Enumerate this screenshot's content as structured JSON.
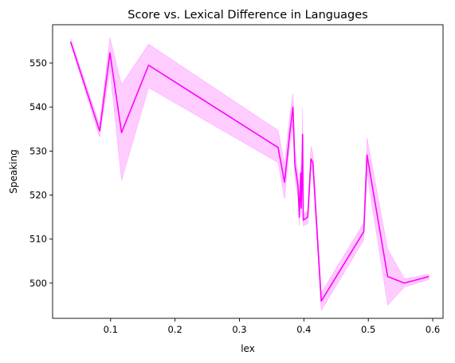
{
  "chart_data": {
    "type": "line",
    "title": "Score vs. Lexical Difference in Languages",
    "xlabel": "lex",
    "ylabel": "Speaking",
    "xlim": [
      0.01,
      0.616
    ],
    "ylim": [
      492.0,
      558.7
    ],
    "x_ticks": [
      0.1,
      0.2,
      0.3,
      0.4,
      0.5,
      0.6
    ],
    "x_tick_labels": [
      "0.1",
      "0.2",
      "0.3",
      "0.4",
      "0.5",
      "0.6"
    ],
    "y_ticks": [
      500,
      510,
      520,
      530,
      540,
      550
    ],
    "y_tick_labels": [
      "500",
      "510",
      "520",
      "530",
      "540",
      "550"
    ],
    "grid": false,
    "legend": "none",
    "series": [
      {
        "line_color": "#ff00ff",
        "band_color": "#ff00ff",
        "band_opacity": 0.2,
        "points": [
          {
            "x": 0.038,
            "y": 554.8,
            "lo": 554.4,
            "hi": 555.6
          },
          {
            "x": 0.083,
            "y": 534.6,
            "lo": 533.1,
            "hi": 536.0
          },
          {
            "x": 0.099,
            "y": 552.3,
            "lo": 548.5,
            "hi": 555.8
          },
          {
            "x": 0.117,
            "y": 534.2,
            "lo": 523.3,
            "hi": 545.1
          },
          {
            "x": 0.159,
            "y": 549.5,
            "lo": 544.4,
            "hi": 554.3
          },
          {
            "x": 0.36,
            "y": 530.8,
            "lo": 527.4,
            "hi": 534.7
          },
          {
            "x": 0.37,
            "y": 522.9,
            "lo": 519.1,
            "hi": 527.0
          },
          {
            "x": 0.378,
            "y": 534.0,
            "lo": 531.0,
            "hi": 538.0
          },
          {
            "x": 0.383,
            "y": 540.0,
            "lo": 535.8,
            "hi": 543.1
          },
          {
            "x": 0.386,
            "y": 527.0,
            "lo": 524.2,
            "hi": 530.4
          },
          {
            "x": 0.391,
            "y": 522.0,
            "lo": 519.0,
            "hi": 525.0
          },
          {
            "x": 0.393,
            "y": 515.0,
            "lo": 513.0,
            "hi": 517.5
          },
          {
            "x": 0.395,
            "y": 525.0,
            "lo": 523.0,
            "hi": 527.0
          },
          {
            "x": 0.396,
            "y": 517.0,
            "lo": 515.0,
            "hi": 519.0
          },
          {
            "x": 0.398,
            "y": 533.8,
            "lo": 529.0,
            "hi": 540.0
          },
          {
            "x": 0.399,
            "y": 514.3,
            "lo": 513.0,
            "hi": 515.6
          },
          {
            "x": 0.406,
            "y": 515.0,
            "lo": 513.5,
            "hi": 516.5
          },
          {
            "x": 0.411,
            "y": 528.2,
            "lo": 526.0,
            "hi": 531.1
          },
          {
            "x": 0.414,
            "y": 527.3,
            "lo": 525.0,
            "hi": 529.5
          },
          {
            "x": 0.427,
            "y": 495.9,
            "lo": 493.8,
            "hi": 497.8
          },
          {
            "x": 0.493,
            "y": 511.7,
            "lo": 509.8,
            "hi": 513.7
          },
          {
            "x": 0.498,
            "y": 529.1,
            "lo": 525.0,
            "hi": 533.0
          },
          {
            "x": 0.53,
            "y": 501.5,
            "lo": 495.0,
            "hi": 507.8
          },
          {
            "x": 0.556,
            "y": 500.0,
            "lo": 499.1,
            "hi": 501.0
          },
          {
            "x": 0.594,
            "y": 501.5,
            "lo": 500.8,
            "hi": 502.0
          }
        ]
      }
    ]
  }
}
